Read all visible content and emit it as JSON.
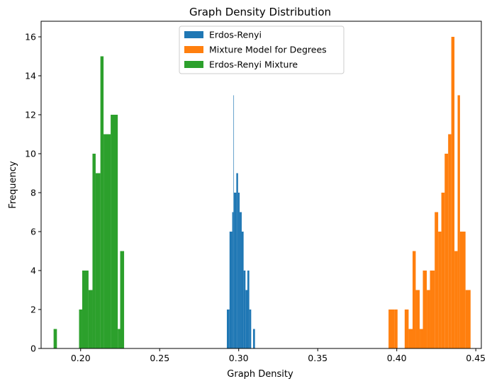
{
  "chart_data": {
    "type": "histogram",
    "title": "Graph Density Distribution",
    "xlabel": "Graph Density",
    "ylabel": "Frequency",
    "xlim": [
      0.175,
      0.4535
    ],
    "ylim": [
      0,
      16.8
    ],
    "xticks": [
      0.2,
      0.25,
      0.3,
      0.35,
      0.4,
      0.45
    ],
    "xtick_labels": [
      "0.20",
      "0.25",
      "0.30",
      "0.35",
      "0.40",
      "0.45"
    ],
    "yticks": [
      0,
      2,
      4,
      6,
      8,
      10,
      12,
      14,
      16
    ],
    "ytick_labels": [
      "0",
      "2",
      "4",
      "6",
      "8",
      "10",
      "12",
      "14",
      "16"
    ],
    "legend_position": "top-center",
    "series": [
      {
        "name": "Erdos-Renyi",
        "color": "#1f77b4",
        "bins": [
          {
            "x0": 0.2925,
            "x1": 0.2942,
            "count": 2
          },
          {
            "x0": 0.2942,
            "x1": 0.2959,
            "count": 6
          },
          {
            "x0": 0.2959,
            "x1": 0.2967,
            "count": 7
          },
          {
            "x0": 0.2967,
            "x1": 0.297,
            "count": 13
          },
          {
            "x0": 0.297,
            "x1": 0.2985,
            "count": 8
          },
          {
            "x0": 0.2985,
            "x1": 0.2996,
            "count": 9
          },
          {
            "x0": 0.2996,
            "x1": 0.3006,
            "count": 8
          },
          {
            "x0": 0.3006,
            "x1": 0.3019,
            "count": 7
          },
          {
            "x0": 0.3019,
            "x1": 0.3031,
            "count": 6
          },
          {
            "x0": 0.3031,
            "x1": 0.3043,
            "count": 4
          },
          {
            "x0": 0.3043,
            "x1": 0.3055,
            "count": 3
          },
          {
            "x0": 0.3055,
            "x1": 0.3067,
            "count": 4
          },
          {
            "x0": 0.3067,
            "x1": 0.3079,
            "count": 2
          },
          {
            "x0": 0.3079,
            "x1": 0.3091,
            "count": 0
          },
          {
            "x0": 0.3091,
            "x1": 0.3103,
            "count": 1
          }
        ]
      },
      {
        "name": "Mixture Model for Degrees",
        "color": "#ff7f0e",
        "bins": [
          {
            "x0": 0.3948,
            "x1": 0.3984,
            "count": 2
          },
          {
            "x0": 0.3984,
            "x1": 0.4005,
            "count": 2
          },
          {
            "x0": 0.4005,
            "x1": 0.405,
            "count": 0
          },
          {
            "x0": 0.405,
            "x1": 0.4075,
            "count": 2
          },
          {
            "x0": 0.4075,
            "x1": 0.41,
            "count": 1
          },
          {
            "x0": 0.41,
            "x1": 0.412,
            "count": 5
          },
          {
            "x0": 0.412,
            "x1": 0.4145,
            "count": 3
          },
          {
            "x0": 0.4145,
            "x1": 0.4165,
            "count": 1
          },
          {
            "x0": 0.4165,
            "x1": 0.419,
            "count": 4
          },
          {
            "x0": 0.419,
            "x1": 0.421,
            "count": 3
          },
          {
            "x0": 0.421,
            "x1": 0.424,
            "count": 4
          },
          {
            "x0": 0.424,
            "x1": 0.4262,
            "count": 7
          },
          {
            "x0": 0.4262,
            "x1": 0.4282,
            "count": 6
          },
          {
            "x0": 0.4282,
            "x1": 0.4303,
            "count": 8
          },
          {
            "x0": 0.4303,
            "x1": 0.4325,
            "count": 10
          },
          {
            "x0": 0.4325,
            "x1": 0.4345,
            "count": 11
          },
          {
            "x0": 0.4345,
            "x1": 0.4365,
            "count": 16
          },
          {
            "x0": 0.4365,
            "x1": 0.4385,
            "count": 5
          },
          {
            "x0": 0.4385,
            "x1": 0.44,
            "count": 13
          },
          {
            "x0": 0.44,
            "x1": 0.4435,
            "count": 6
          },
          {
            "x0": 0.4435,
            "x1": 0.4467,
            "count": 3
          }
        ]
      },
      {
        "name": "Erdos-Renyi Mixture",
        "color": "#2ca02c",
        "bins": [
          {
            "x0": 0.1829,
            "x1": 0.185,
            "count": 1
          },
          {
            "x0": 0.185,
            "x1": 0.199,
            "count": 0
          },
          {
            "x0": 0.199,
            "x1": 0.201,
            "count": 2
          },
          {
            "x0": 0.201,
            "x1": 0.205,
            "count": 4
          },
          {
            "x0": 0.205,
            "x1": 0.2075,
            "count": 3
          },
          {
            "x0": 0.2075,
            "x1": 0.2095,
            "count": 10
          },
          {
            "x0": 0.2095,
            "x1": 0.2125,
            "count": 9
          },
          {
            "x0": 0.2125,
            "x1": 0.2145,
            "count": 15
          },
          {
            "x0": 0.2145,
            "x1": 0.219,
            "count": 11
          },
          {
            "x0": 0.219,
            "x1": 0.2235,
            "count": 12
          },
          {
            "x0": 0.2235,
            "x1": 0.225,
            "count": 1
          },
          {
            "x0": 0.225,
            "x1": 0.2275,
            "count": 5
          }
        ]
      }
    ]
  }
}
